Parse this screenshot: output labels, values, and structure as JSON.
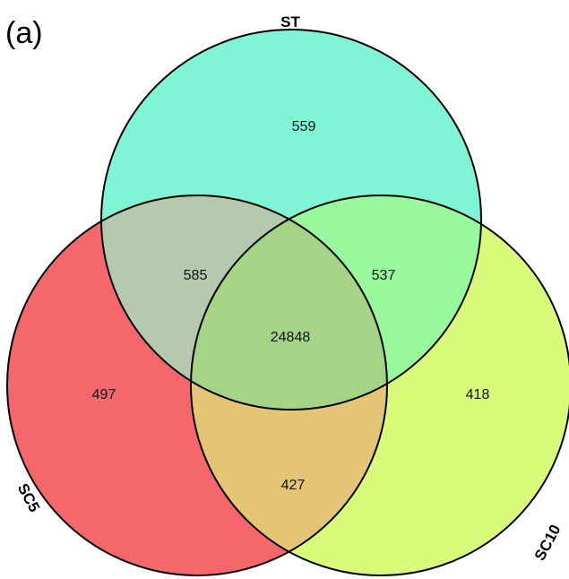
{
  "panel_label": "(a)",
  "sets": [
    {
      "name": "ST",
      "color": "#7ff5d5"
    },
    {
      "name": "SC5",
      "color": "#f6676c"
    },
    {
      "name": "SC10",
      "color": "#d8fb7a"
    }
  ],
  "regions": {
    "st_only": "559",
    "sc5_only": "497",
    "sc10_only": "418",
    "st_sc5": "585",
    "st_sc10": "537",
    "sc5_sc10": "427",
    "all": "24848"
  },
  "overlap_colors": {
    "st_sc5": "#b4c9ad",
    "st_sc10": "#98f89c",
    "sc5_sc10": "#e4c475",
    "all": "#a6d486"
  }
}
